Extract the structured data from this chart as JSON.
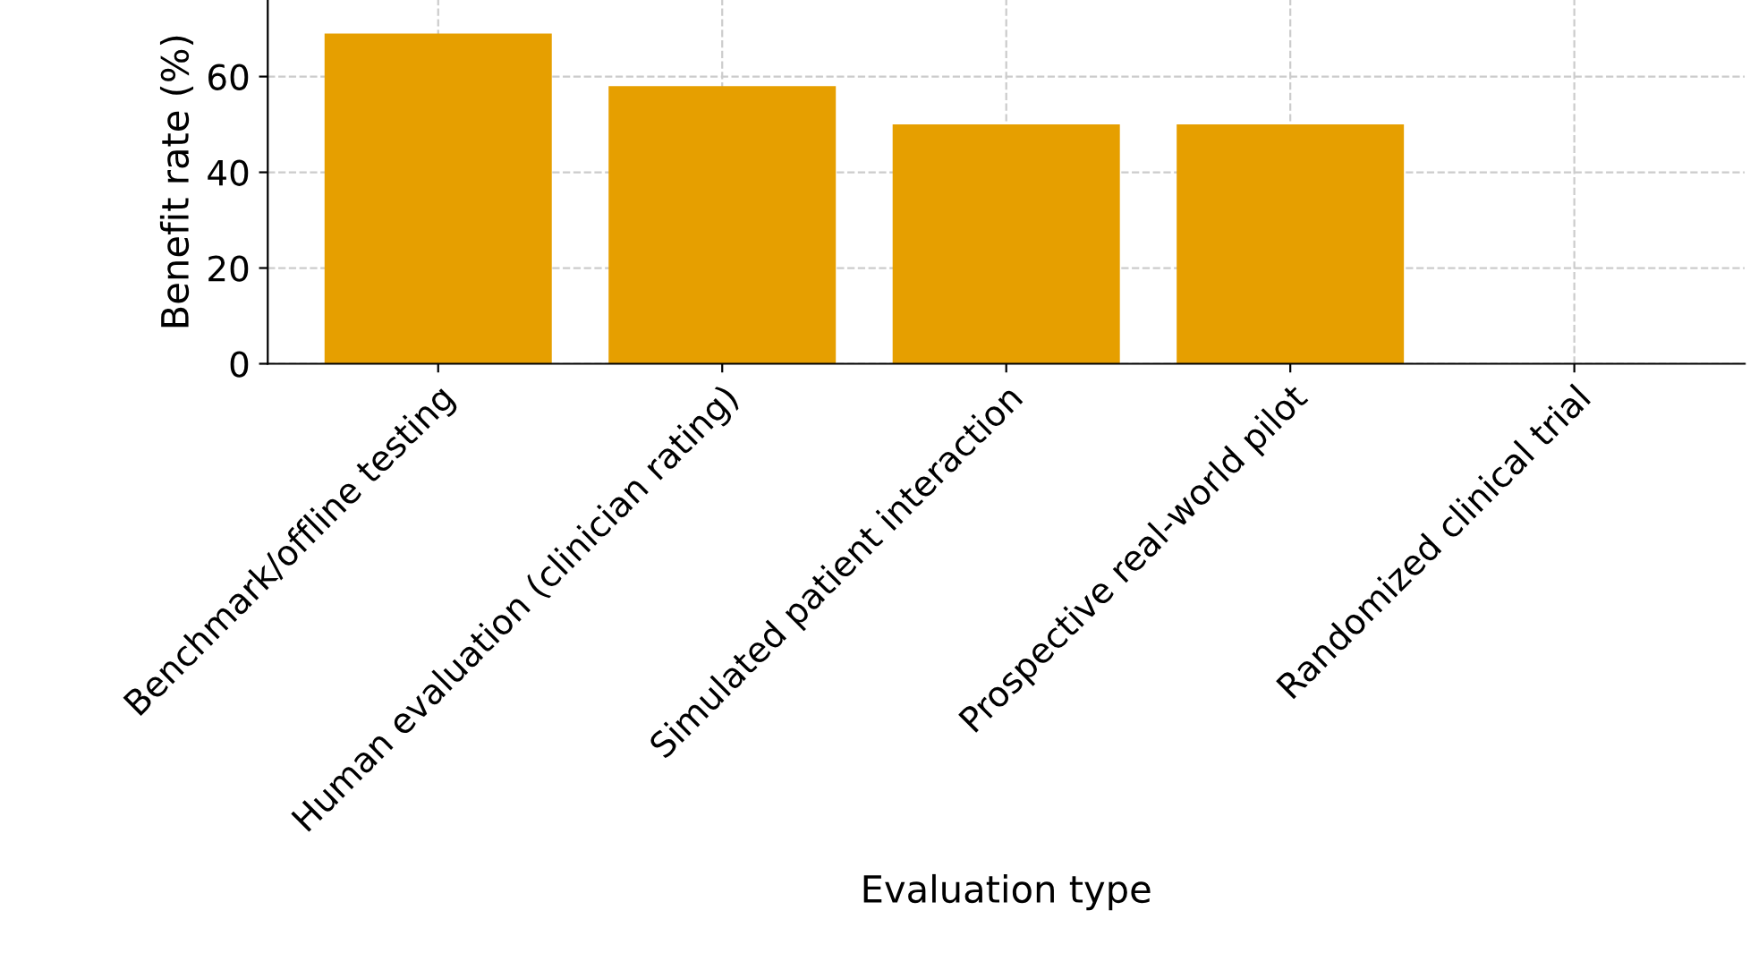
{
  "chart_data": {
    "type": "bar",
    "xlabel": "Evaluation type",
    "ylabel": "Benefit rate (%)",
    "categories": [
      "Benchmark/offline testing",
      "Human evaluation (clinician rating)",
      "Simulated patient interaction",
      "Prospective real-world pilot",
      "Randomized clinical trial"
    ],
    "values": [
      69,
      58,
      50,
      50,
      0
    ],
    "color": "#e69f00",
    "ylim": [
      0,
      76
    ],
    "yticks": [
      0,
      20,
      40,
      60
    ],
    "grid": true
  }
}
